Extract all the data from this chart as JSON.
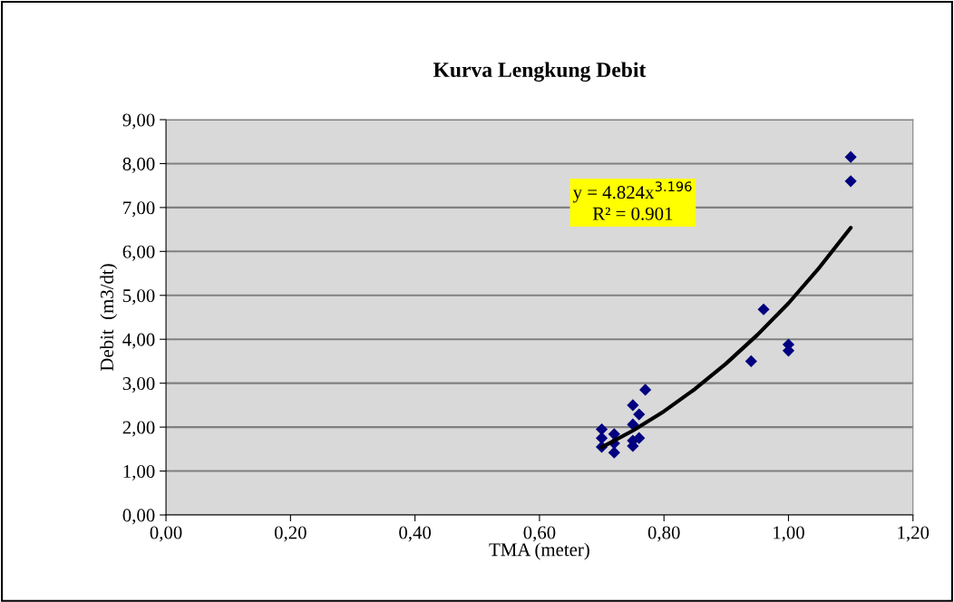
{
  "chart_data": {
    "type": "scatter",
    "title": "Kurva Lengkung Debit",
    "xlabel": "TMA (meter)",
    "ylabel": "Debit  (m3/dt)",
    "annotations": [
      "y = 4.824x$^{3.196}$",
      "R² = 0.901"
    ],
    "series": [
      {
        "color": "#000080",
        "marker": "diamond",
        "x": [
          0.7,
          0.7,
          0.7,
          0.72,
          0.72,
          0.72,
          0.75,
          0.77,
          0.76,
          0.75,
          0.76,
          0.75,
          0.75,
          0.94,
          0.96,
          1.0,
          1.0,
          1.1,
          1.1
        ],
        "values": [
          1.95,
          1.75,
          1.55,
          1.84,
          1.63,
          1.42,
          2.5,
          2.85,
          2.29,
          2.06,
          1.75,
          1.69,
          1.57,
          3.5,
          4.68,
          3.88,
          3.74,
          8.15,
          7.6
        ]
      },
      {
        "type": "line",
        "color": "#000000",
        "marker": "none",
        "line_style": "solid",
        "x": [
          0.7,
          0.75,
          0.8,
          0.85,
          0.9,
          0.95,
          1.0,
          1.05,
          1.1
        ],
        "values": [
          1.54,
          1.92,
          2.36,
          2.87,
          3.45,
          4.1,
          4.82,
          5.64,
          6.54
        ]
      }
    ],
    "xlim": [
      0,
      1.2
    ],
    "ylim": [
      0,
      9
    ],
    "xticks": [
      {
        "value": 0,
        "label": "0,00"
      },
      {
        "value": 0.2,
        "label": "0,20"
      },
      {
        "value": 0.4,
        "label": "0,40"
      },
      {
        "value": 0.6,
        "label": "0,60"
      },
      {
        "value": 0.8,
        "label": "0,80"
      },
      {
        "value": 1.0,
        "label": "1,00"
      },
      {
        "value": 1.2,
        "label": "1,20"
      }
    ],
    "yticks": [
      {
        "value": 0,
        "label": "0,00"
      },
      {
        "value": 1,
        "label": "1,00"
      },
      {
        "value": 2,
        "label": "2,00"
      },
      {
        "value": 3,
        "label": "3,00"
      },
      {
        "value": 4,
        "label": "4,00"
      },
      {
        "value": 5,
        "label": "5,00"
      },
      {
        "value": 6,
        "label": "6,00"
      },
      {
        "value": 7,
        "label": "7,00"
      },
      {
        "value": 8,
        "label": "8,00"
      },
      {
        "value": 9,
        "label": "9,00"
      }
    ],
    "grid": "y",
    "legend": false
  }
}
